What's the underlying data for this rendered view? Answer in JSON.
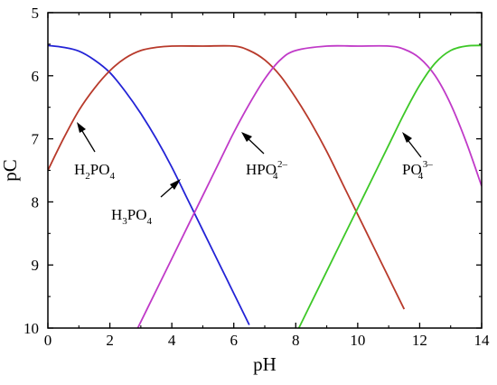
{
  "chart_data": {
    "type": "line",
    "title": "",
    "xlabel": "pH",
    "ylabel": "pC",
    "xlim": [
      0,
      14
    ],
    "ylim": [
      10,
      5
    ],
    "y_inverted": true,
    "xticks": [
      "0",
      "2",
      "4",
      "6",
      "8",
      "10",
      "12",
      "14"
    ],
    "yticks": [
      "5",
      "6",
      "7",
      "8",
      "9",
      "10"
    ],
    "grid": false,
    "legend": "none",
    "series": [
      {
        "color": "#2323d6",
        "x": [
          0,
          0.5,
          1,
          1.5,
          2,
          2.5,
          3,
          3.5,
          4,
          4.5,
          5,
          5.5,
          6,
          6.5
        ],
        "y": [
          5.52,
          5.55,
          5.61,
          5.75,
          5.95,
          6.25,
          6.6,
          7.0,
          7.45,
          7.95,
          8.45,
          8.95,
          9.45,
          9.95
        ]
      },
      {
        "color": "#b83a2b",
        "x": [
          0,
          0.5,
          1,
          1.5,
          2,
          2.5,
          3,
          3.5,
          4,
          5,
          6,
          6.5,
          7,
          7.5,
          8,
          8.5,
          9,
          9.5,
          10,
          10.5,
          11,
          11.5
        ],
        "y": [
          7.5,
          7.0,
          6.55,
          6.2,
          5.92,
          5.72,
          5.6,
          5.55,
          5.53,
          5.53,
          5.53,
          5.6,
          5.75,
          6.0,
          6.35,
          6.75,
          7.2,
          7.7,
          8.2,
          8.7,
          9.2,
          9.7
        ]
      },
      {
        "color": "#c03ac8",
        "x": [
          2.9,
          3.5,
          4,
          4.5,
          5,
          5.5,
          6,
          6.5,
          7,
          7.5,
          8,
          9,
          10,
          11,
          11.5,
          12,
          12.5,
          13,
          13.5,
          14
        ],
        "y": [
          10.0,
          9.4,
          8.9,
          8.4,
          7.9,
          7.4,
          6.9,
          6.45,
          6.05,
          5.75,
          5.6,
          5.53,
          5.53,
          5.53,
          5.58,
          5.72,
          6.0,
          6.45,
          7.05,
          7.75
        ]
      },
      {
        "color": "#3ec828",
        "x": [
          8.1,
          8.5,
          9,
          9.5,
          10,
          10.5,
          11,
          11.5,
          12,
          12.5,
          13,
          13.5,
          14
        ],
        "y": [
          10.0,
          9.6,
          9.1,
          8.6,
          8.1,
          7.6,
          7.1,
          6.6,
          6.15,
          5.8,
          5.6,
          5.53,
          5.52
        ]
      }
    ],
    "annotations": [
      {
        "base": "H",
        "sub": "2",
        "rest": "PO",
        "sub2": "4",
        "sup": ""
      },
      {
        "base": "H",
        "sub": "3",
        "rest": "PO",
        "sub2": "4",
        "sup": ""
      },
      {
        "base": "",
        "sub": "",
        "rest": "HPO",
        "sub2": "4",
        "sup": "2–"
      },
      {
        "base": "",
        "sub": "",
        "rest": "PO",
        "sub2": "4",
        "sup": "3–"
      }
    ]
  }
}
